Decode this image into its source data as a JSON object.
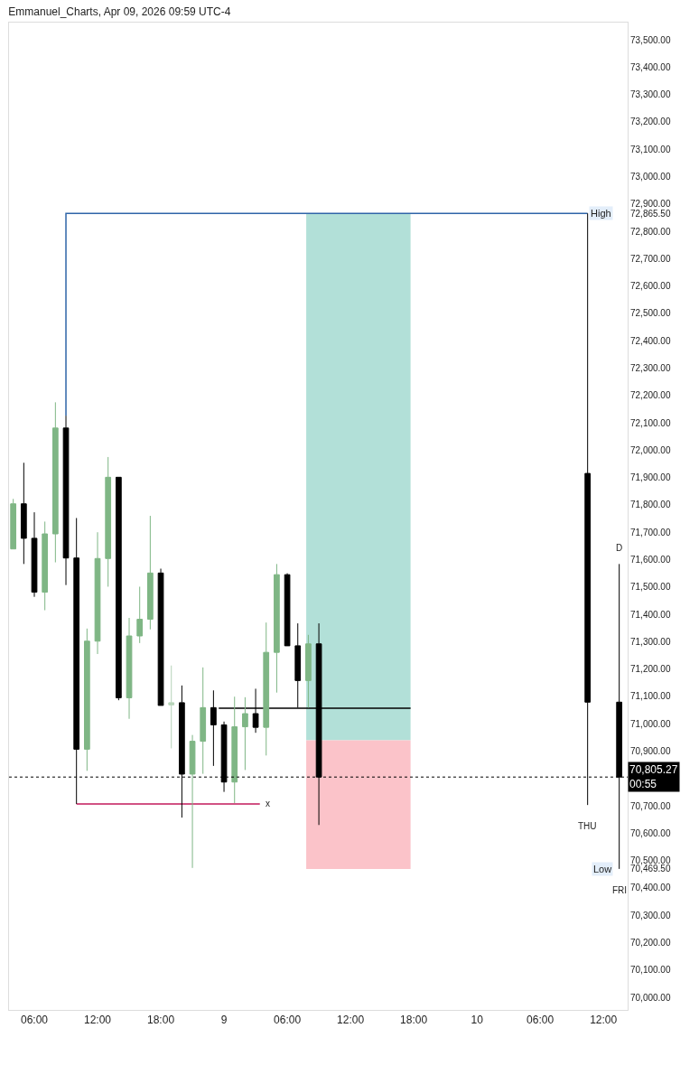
{
  "chart_data": {
    "type": "candlestick",
    "title": "Emmanuel_Charts, Apr 09, 2026 09:59 UTC-4",
    "xlim": [
      "2026-04-08T03:36",
      "2026-04-10T14:18"
    ],
    "ylim": [
      69954,
      73563
    ],
    "xticks": [
      {
        "value": "2026-04-08T06:00",
        "label": "06:00"
      },
      {
        "value": "2026-04-08T12:00",
        "label": "12:00"
      },
      {
        "value": "2026-04-08T18:00",
        "label": "18:00"
      },
      {
        "value": "2026-04-09T00:00",
        "label": "9"
      },
      {
        "value": "2026-04-09T06:00",
        "label": "06:00"
      },
      {
        "value": "2026-04-09T12:00",
        "label": "12:00"
      },
      {
        "value": "2026-04-09T18:00",
        "label": "18:00"
      },
      {
        "value": "2026-04-10T00:00",
        "label": "10"
      },
      {
        "value": "2026-04-10T06:00",
        "label": "06:00"
      },
      {
        "value": "2026-04-10T12:00",
        "label": "12:00"
      }
    ],
    "yticks": [
      {
        "value": 70000,
        "label": "70,000.00"
      },
      {
        "value": 70100,
        "label": "70,100.00"
      },
      {
        "value": 70200,
        "label": "70,200.00"
      },
      {
        "value": 70300,
        "label": "70,300.00"
      },
      {
        "value": 70400,
        "label": "70,400.00"
      },
      {
        "value": 70469.5,
        "label": "70,469.50"
      },
      {
        "value": 70500,
        "label": "70,500.00"
      },
      {
        "value": 70600,
        "label": "70,600.00"
      },
      {
        "value": 70700,
        "label": "70,700.00"
      },
      {
        "value": 70800,
        "label": null
      },
      {
        "value": 70900,
        "label": "70,900.00"
      },
      {
        "value": 71000,
        "label": "71,000.00"
      },
      {
        "value": 71100,
        "label": "71,100.00"
      },
      {
        "value": 71200,
        "label": "71,200.00"
      },
      {
        "value": 71300,
        "label": "71,300.00"
      },
      {
        "value": 71400,
        "label": "71,400.00"
      },
      {
        "value": 71500,
        "label": "71,500.00"
      },
      {
        "value": 71600,
        "label": "71,600.00"
      },
      {
        "value": 71700,
        "label": "71,700.00"
      },
      {
        "value": 71800,
        "label": "71,800.00"
      },
      {
        "value": 71900,
        "label": "71,900.00"
      },
      {
        "value": 72000,
        "label": "72,000.00"
      },
      {
        "value": 72100,
        "label": "72,100.00"
      },
      {
        "value": 72200,
        "label": "72,200.00"
      },
      {
        "value": 72300,
        "label": "72,300.00"
      },
      {
        "value": 72400,
        "label": "72,400.00"
      },
      {
        "value": 72500,
        "label": "72,500.00"
      },
      {
        "value": 72600,
        "label": "72,600.00"
      },
      {
        "value": 72700,
        "label": "72,700.00"
      },
      {
        "value": 72800,
        "label": "72,800.00"
      },
      {
        "value": 72865.5,
        "label": "72,865.50"
      },
      {
        "value": 72900,
        "label": "72,900.00"
      },
      {
        "value": 73000,
        "label": "73,000.00"
      },
      {
        "value": 73100,
        "label": "73,100.00"
      },
      {
        "value": 73200,
        "label": "73,200.00"
      },
      {
        "value": 73300,
        "label": "73,300.00"
      },
      {
        "value": 73400,
        "label": "73,400.00"
      },
      {
        "value": 73500,
        "label": "73,500.00"
      }
    ],
    "series": [
      {
        "type": "bar",
        "x": [
          "2026-04-09T12:45"
        ],
        "values": [
          1925.5
        ],
        "base": [
          70940
        ],
        "color": "#b2e0d8"
      },
      {
        "type": "bar",
        "x": [
          "2026-04-09T12:45"
        ],
        "values": [
          470.5
        ],
        "base": [
          70469.5
        ],
        "color": "#fbc3c9"
      },
      {
        "type": "line",
        "x": [
          "2026-04-08T09:00",
          "2026-04-08T09:00",
          "2026-04-10T10:30"
        ],
        "values": [
          72126,
          72865.5,
          72865.5
        ],
        "color": "#2f65a8"
      },
      {
        "type": "line",
        "x": [
          "2026-04-08T23:30",
          "2026-04-09T17:42"
        ],
        "values": [
          71057,
          71057
        ],
        "color": "#000000"
      },
      {
        "type": "line",
        "x": [
          "2026-04-08T10:00",
          "2026-04-09T03:24"
        ],
        "values": [
          70707,
          70707
        ],
        "color": "#c2185b"
      },
      {
        "x": [
          "2026-04-08T04:00",
          "2026-04-08T05:00",
          "2026-04-08T06:00",
          "2026-04-08T07:00",
          "2026-04-08T08:00",
          "2026-04-08T09:00",
          "2026-04-08T10:00",
          "2026-04-08T11:00",
          "2026-04-08T12:00",
          "2026-04-08T13:00",
          "2026-04-08T14:00",
          "2026-04-08T15:00",
          "2026-04-08T16:00",
          "2026-04-08T17:00",
          "2026-04-08T18:00",
          "2026-04-08T19:00",
          "2026-04-08T20:00",
          "2026-04-08T21:00",
          "2026-04-08T22:00",
          "2026-04-08T23:00",
          "2026-04-09T00:00",
          "2026-04-09T01:00",
          "2026-04-09T02:00",
          "2026-04-09T03:00",
          "2026-04-09T04:00",
          "2026-04-09T05:00",
          "2026-04-09T06:00",
          "2026-04-09T07:00",
          "2026-04-09T08:00",
          "2026-04-09T09:00"
        ],
        "ohlc": [
          [
            71639,
            71822,
            71639,
            71804
          ],
          [
            71804,
            71954,
            71584,
            71678
          ],
          [
            71678,
            71773,
            71464,
            71481
          ],
          [
            71481,
            71739,
            71415,
            71694
          ],
          [
            71694,
            72175,
            71590,
            72081
          ],
          [
            72081,
            72126,
            71507,
            71606
          ],
          [
            71606,
            71752,
            70707,
            70907
          ],
          [
            70907,
            71348,
            70828,
            71302
          ],
          [
            71302,
            71700,
            71255,
            71604
          ],
          [
            71604,
            71975,
            71501,
            71901
          ],
          [
            71901,
            71901,
            71086,
            71095
          ],
          [
            71095,
            71387,
            71018,
            71321
          ],
          [
            71321,
            71501,
            71295,
            71382
          ],
          [
            71382,
            71760,
            71345,
            71551
          ],
          [
            71551,
            71567,
            71067,
            71067
          ],
          [
            71069,
            71213,
            70910,
            71077
          ],
          [
            71077,
            71140,
            70657,
            70816
          ],
          [
            70816,
            70959,
            70473,
            70936
          ],
          [
            70936,
            71206,
            70817,
            71059
          ],
          [
            71059,
            71122,
            70846,
            70996
          ],
          [
            70996,
            71008,
            70751,
            70787
          ],
          [
            70787,
            71099,
            70710,
            70989
          ],
          [
            70989,
            71097,
            70831,
            71037
          ],
          [
            71037,
            71128,
            70967,
            70987
          ],
          [
            70987,
            71370,
            70884,
            71261
          ],
          [
            71261,
            71584,
            71114,
            71545
          ],
          [
            71545,
            71550,
            71285,
            71285
          ],
          [
            71285,
            71367,
            71059,
            71158
          ],
          [
            71158,
            71325,
            71059,
            71292
          ],
          [
            71292,
            71367,
            70630,
            70805.27
          ]
        ],
        "colors": [
          "#7fb685",
          "#000000",
          "#000000",
          "#7fb685",
          "#7fb685",
          "#000000",
          "#000000",
          "#7fb685",
          "#7fb685",
          "#7fb685",
          "#000000",
          "#7fb685",
          "#7fb685",
          "#7fb685",
          "#000000",
          "#b7d4b9",
          "#000000",
          "#7fb685",
          "#7fb685",
          "#000000",
          "#000000",
          "#7fb685",
          "#7fb685",
          "#000000",
          "#7fb685",
          "#7fb685",
          "#000000",
          "#000000",
          "#7fb685",
          "#000000"
        ]
      },
      {
        "x": [
          "2026-04-10T10:30",
          "2026-04-10T13:30"
        ],
        "ohlc": [
          [
            71915,
            72865.5,
            70703,
            71079
          ],
          [
            71079,
            71584,
            70469.5,
            70805.27
          ]
        ],
        "colors": [
          "#000000",
          "#000000"
        ]
      }
    ],
    "ref_lines": [
      {
        "axis": "y",
        "value": 70805.27,
        "label": "70,805.27\n00:55",
        "color": "#000000",
        "line_style": "dotted"
      }
    ],
    "annotations": [
      {
        "text": "High",
        "y": 72865.5
      },
      {
        "text": "Low",
        "y": 70469.5
      },
      {
        "text": "x",
        "x": "2026-04-09T03:24",
        "y": 70707
      },
      {
        "text": "D",
        "x": "2026-04-10T13:30",
        "y": 71584
      },
      {
        "text": "THU",
        "x": "2026-04-10T10:30",
        "y": 70703
      },
      {
        "text": "FRI",
        "x": "2026-04-10T13:30",
        "y": 70469.5
      }
    ]
  }
}
